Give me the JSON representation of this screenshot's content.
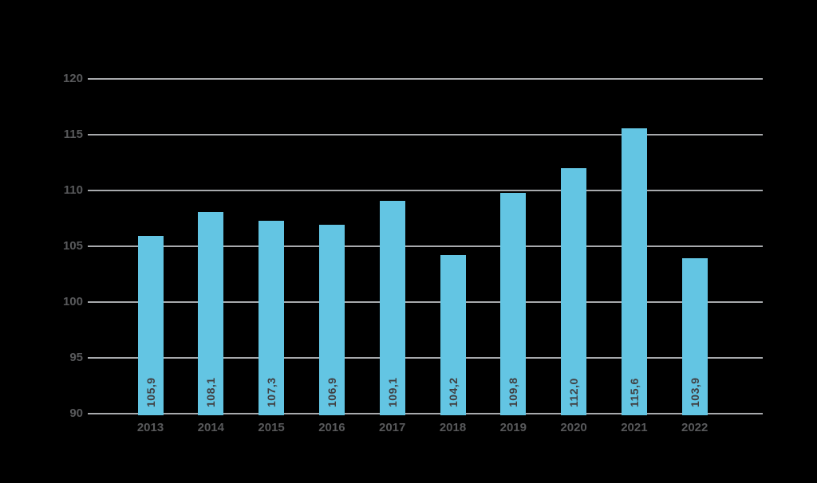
{
  "chart_data": {
    "type": "bar",
    "title": "",
    "xlabel": "",
    "ylabel": "",
    "categories": [
      "2013",
      "2014",
      "2015",
      "2016",
      "2017",
      "2018",
      "2019",
      "2020",
      "2021",
      "2022"
    ],
    "values": [
      105.9,
      108.1,
      107.3,
      106.9,
      109.1,
      104.2,
      109.8,
      112.0,
      115.6,
      103.9
    ],
    "value_labels": [
      "105,9",
      "108,1",
      "107,3",
      "106,9",
      "109,1",
      "104,2",
      "109,8",
      "112,0",
      "115,6",
      "103,9"
    ],
    "y_tick_labels": [
      "120",
      "115",
      "110",
      "105",
      "100",
      "95",
      "90"
    ],
    "y_ticks": [
      120,
      115,
      110,
      105,
      100,
      95,
      90
    ],
    "ylim": [
      90,
      120
    ],
    "grid": "horizontal",
    "legend": "none",
    "decimal_separator": ",",
    "colors": {
      "background": "#000000",
      "bar": "#63C5E3",
      "gridline": "#A8AAAD",
      "axis_tick_label": "#58595B",
      "value_label": "#414042"
    }
  }
}
